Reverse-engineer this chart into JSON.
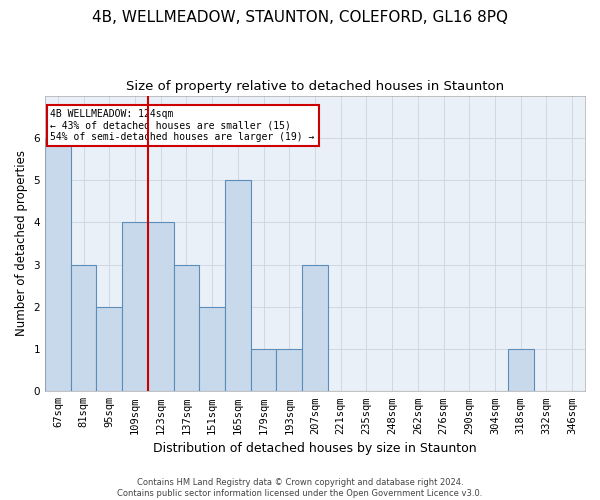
{
  "title": "4B, WELLMEADOW, STAUNTON, COLEFORD, GL16 8PQ",
  "subtitle": "Size of property relative to detached houses in Staunton",
  "xlabel": "Distribution of detached houses by size in Staunton",
  "ylabel": "Number of detached properties",
  "categories": [
    "67sqm",
    "81sqm",
    "95sqm",
    "109sqm",
    "123sqm",
    "137sqm",
    "151sqm",
    "165sqm",
    "179sqm",
    "193sqm",
    "207sqm",
    "221sqm",
    "235sqm",
    "248sqm",
    "262sqm",
    "276sqm",
    "290sqm",
    "304sqm",
    "318sqm",
    "332sqm",
    "346sqm"
  ],
  "values": [
    6,
    3,
    2,
    4,
    4,
    3,
    2,
    5,
    1,
    1,
    3,
    0,
    0,
    0,
    0,
    0,
    0,
    0,
    1,
    0,
    0
  ],
  "bar_color": "#c9d9ec",
  "bar_edge_color": "#5b8db8",
  "highlight_line_color": "#cc0000",
  "annotation_box_color": "#cc0000",
  "ylim": [
    0,
    7
  ],
  "yticks": [
    0,
    1,
    2,
    3,
    4,
    5,
    6,
    7
  ],
  "footer_text": "Contains HM Land Registry data © Crown copyright and database right 2024.\nContains public sector information licensed under the Open Government Licence v3.0.",
  "bg_color": "#ffffff",
  "grid_color": "#d0d8e4",
  "title_fontsize": 11,
  "subtitle_fontsize": 9.5,
  "tick_fontsize": 7.5,
  "ylabel_fontsize": 8.5,
  "xlabel_fontsize": 9,
  "annotation_fontsize": 7,
  "footer_fontsize": 6
}
